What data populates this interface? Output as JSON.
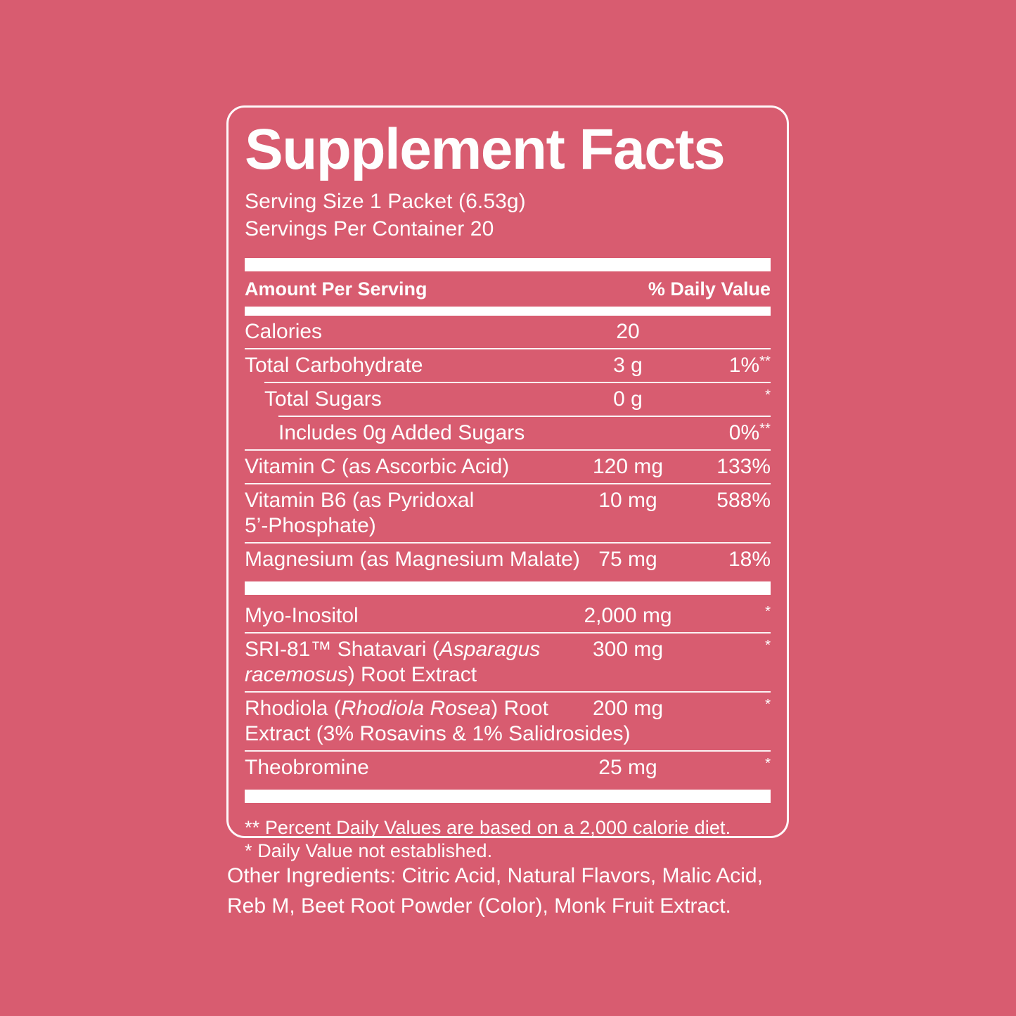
{
  "colors": {
    "background": "#D85C70",
    "text": "#FFFFFF",
    "divider": "#FFFFFF"
  },
  "panel": {
    "title": "Supplement Facts",
    "serving_size": "Serving Size 1 Packet (6.53g)",
    "servings_per_container": "Servings Per Container 20",
    "header": {
      "amount_label": "Amount Per Serving",
      "dv_label": "% Daily Value"
    },
    "rows": [
      {
        "indent": 0,
        "lines": [
          [
            {
              "t": "Calories"
            }
          ]
        ],
        "amount": "20",
        "dv": "",
        "dv_sup": "",
        "sep": "line"
      },
      {
        "indent": 0,
        "lines": [
          [
            {
              "t": "Total Carbohydrate"
            }
          ]
        ],
        "amount": "3 g",
        "dv": "1%",
        "dv_sup": "**",
        "sep": "line1"
      },
      {
        "indent": 1,
        "lines": [
          [
            {
              "t": "Total Sugars"
            }
          ]
        ],
        "amount": "0 g",
        "dv": "",
        "dv_sup": "*",
        "sep": "line2"
      },
      {
        "indent": 2,
        "lines": [
          [
            {
              "t": "Includes 0g Added Sugars"
            }
          ]
        ],
        "amount": "",
        "dv": "0%",
        "dv_sup": "**",
        "sep": "line"
      },
      {
        "indent": 0,
        "lines": [
          [
            {
              "t": "Vitamin C (as Ascorbic Acid)"
            }
          ]
        ],
        "amount": "120 mg",
        "dv": "133%",
        "dv_sup": "",
        "sep": "line"
      },
      {
        "indent": 0,
        "lines": [
          [
            {
              "t": "Vitamin B6 (as Pyridoxal"
            }
          ],
          [
            {
              "t": "5’-Phosphate)"
            }
          ]
        ],
        "amount": "10 mg",
        "dv": "588%",
        "dv_sup": "",
        "sep": "line"
      },
      {
        "indent": 0,
        "lines": [
          [
            {
              "t": "Magnesium (as Magnesium Malate)"
            }
          ]
        ],
        "amount": "75 mg",
        "dv": "18%",
        "dv_sup": "",
        "sep": "bar"
      },
      {
        "indent": 0,
        "lines": [
          [
            {
              "t": "Myo-Inositol"
            }
          ]
        ],
        "amount": "2,000 mg",
        "dv": "",
        "dv_sup": "*",
        "sep": "line"
      },
      {
        "indent": 0,
        "lines": [
          [
            {
              "t": "SRI-81™ Shatavari ("
            },
            {
              "t": "Asparagus",
              "i": true
            }
          ],
          [
            {
              "t": "racemosus",
              "i": true
            },
            {
              "t": ") Root Extract"
            }
          ]
        ],
        "amount": "300 mg",
        "dv": "",
        "dv_sup": "*",
        "sep": "line"
      },
      {
        "indent": 0,
        "lines": [
          [
            {
              "t": "Rhodiola ("
            },
            {
              "t": "Rhodiola Rosea",
              "i": true
            },
            {
              "t": ") Root"
            }
          ],
          [
            {
              "t": "Extract (3% Rosavins & 1% Salidrosides)"
            }
          ]
        ],
        "amount": "200 mg",
        "dv": "",
        "dv_sup": "*",
        "sep": "line"
      },
      {
        "indent": 0,
        "lines": [
          [
            {
              "t": "Theobromine"
            }
          ]
        ],
        "amount": "25 mg",
        "dv": "",
        "dv_sup": "*",
        "sep": "bar"
      }
    ],
    "footnotes": [
      "** Percent Daily Values are based on a 2,000 calorie diet.",
      "* Daily Value not established."
    ]
  },
  "other_ingredients": {
    "lines": [
      "Other Ingredients: Citric Acid, Natural Flavors, Malic Acid,",
      "Reb M, Beet Root Powder (Color), Monk Fruit Extract."
    ]
  }
}
